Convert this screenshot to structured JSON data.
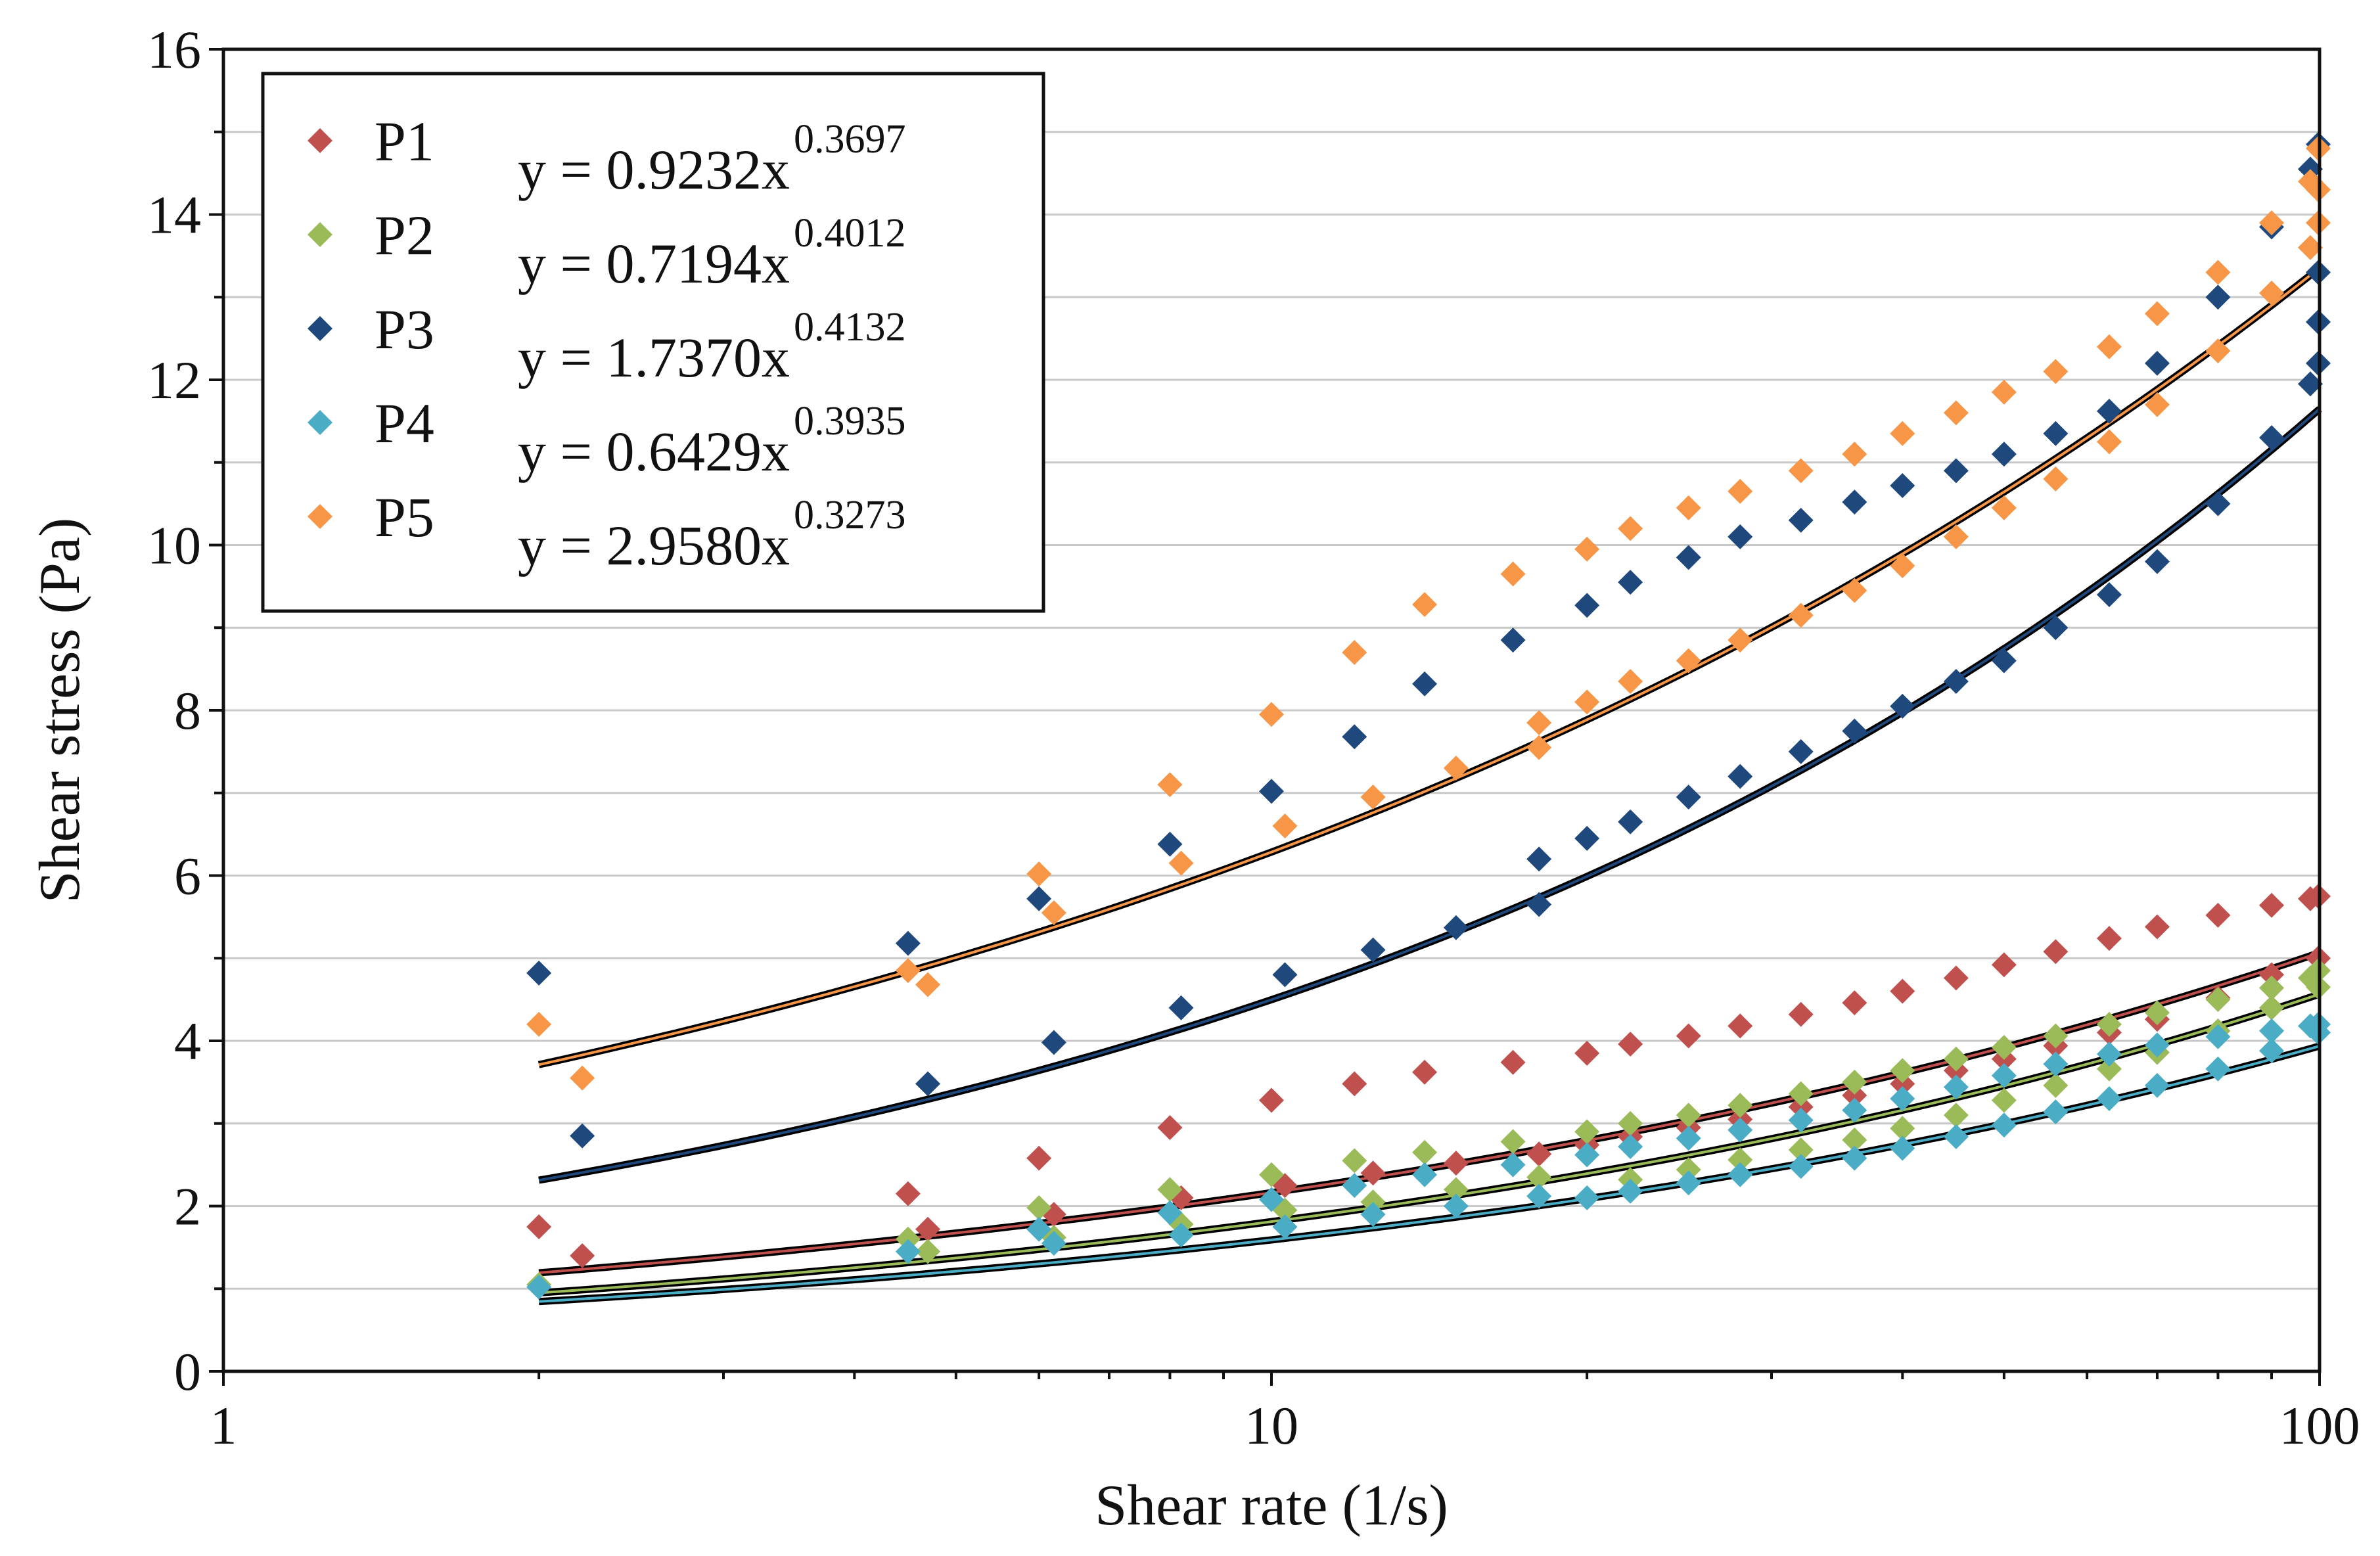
{
  "chart_data": {
    "type": "scatter",
    "xscale": "log",
    "xlim": [
      1,
      100
    ],
    "ylim": [
      0,
      16
    ],
    "xticks": [
      "1",
      "10",
      "100"
    ],
    "yticks": [
      "0",
      "2",
      "4",
      "6",
      "8",
      "10",
      "12",
      "14",
      "16"
    ],
    "xlabel": "Shear rate (1/s)",
    "ylabel": "Shear stress (Pa)",
    "grid": true,
    "legend_position": "top-left",
    "series": [
      {
        "name": "P1",
        "color": "#c0504d",
        "fit": {
          "a": 0.9232,
          "b": 0.3697,
          "equation": "y = 0.9232x",
          "exponent": "0.3697"
        },
        "up": {
          "x": [
            2.0,
            2.2,
            4.5,
            4.7,
            6.0,
            6.2,
            8.0,
            8.2,
            10.0,
            10.3,
            12.0,
            12.5,
            14.0,
            15.0,
            17.0,
            18.0,
            20.0,
            22.0,
            25.0,
            28.0,
            32.0,
            36.0,
            40.0,
            45.0,
            50.0,
            56.0,
            63.0,
            70.0,
            80.0,
            90.0,
            98.0,
            100.0
          ],
          "y": [
            1.75,
            1.4,
            2.15,
            1.72,
            2.58,
            1.9,
            2.95,
            2.1,
            3.28,
            2.25,
            3.48,
            2.4,
            3.62,
            2.52,
            3.74,
            2.63,
            3.85,
            3.96,
            4.06,
            4.18,
            4.32,
            4.46,
            4.6,
            4.76,
            4.92,
            5.08,
            5.24,
            5.38,
            5.52,
            5.64,
            5.72,
            5.75
          ]
        },
        "down": {
          "x": [
            100.0,
            90.0,
            80.0,
            70.0,
            63.0,
            56.0,
            50.0,
            45.0,
            40.0,
            36.0,
            32.0,
            28.0,
            25.0,
            22.0,
            20.0,
            18.0
          ],
          "y": [
            5.0,
            4.8,
            4.52,
            4.26,
            4.1,
            3.94,
            3.78,
            3.64,
            3.48,
            3.34,
            3.2,
            3.05,
            2.95,
            2.84,
            2.74,
            2.63
          ]
        }
      },
      {
        "name": "P2",
        "color": "#9bbb59",
        "fit": {
          "a": 0.7194,
          "b": 0.4012,
          "equation": "y = 0.7194x",
          "exponent": "0.4012"
        },
        "up": {
          "x": [
            2.0,
            4.5,
            4.7,
            6.0,
            6.2,
            8.0,
            8.2,
            10.0,
            10.3,
            12.0,
            12.5,
            14.0,
            15.0,
            17.0,
            18.0,
            20.0,
            22.0,
            25.0,
            28.0,
            32.0,
            36.0,
            40.0,
            45.0,
            50.0,
            56.0,
            63.0,
            70.0,
            80.0,
            90.0,
            98.0,
            100.0
          ],
          "y": [
            1.05,
            1.6,
            1.45,
            1.98,
            1.62,
            2.2,
            1.78,
            2.38,
            1.95,
            2.55,
            2.05,
            2.65,
            2.2,
            2.78,
            2.35,
            2.9,
            3.0,
            3.1,
            3.22,
            3.36,
            3.5,
            3.64,
            3.78,
            3.92,
            4.06,
            4.2,
            4.34,
            4.5,
            4.64,
            4.76,
            4.85
          ]
        },
        "down": {
          "x": [
            100.0,
            90.0,
            80.0,
            70.0,
            63.0,
            56.0,
            50.0,
            45.0,
            40.0,
            36.0,
            32.0,
            28.0,
            25.0,
            22.0
          ],
          "y": [
            4.65,
            4.4,
            4.12,
            3.86,
            3.66,
            3.46,
            3.28,
            3.1,
            2.94,
            2.8,
            2.68,
            2.56,
            2.44,
            2.32
          ]
        }
      },
      {
        "name": "P3",
        "color": "#1f497d",
        "fit": {
          "a": 1.737,
          "b": 0.4132,
          "equation": "y = 1.7370x",
          "exponent": "0.4132"
        },
        "up": {
          "x": [
            2.0,
            2.2,
            4.5,
            4.7,
            6.0,
            6.2,
            8.0,
            8.2,
            10.0,
            10.3,
            12.0,
            12.5,
            14.0,
            15.0,
            17.0,
            18.0,
            20.0,
            22.0,
            25.0,
            28.0,
            32.0,
            36.0,
            40.0,
            45.0,
            50.0,
            56.0,
            63.0,
            70.0,
            80.0,
            90.0,
            98.0,
            100.0
          ],
          "y": [
            4.82,
            2.85,
            5.18,
            3.48,
            5.72,
            3.98,
            6.38,
            4.4,
            7.02,
            4.8,
            7.68,
            5.1,
            8.32,
            5.37,
            8.85,
            5.65,
            9.27,
            9.55,
            9.85,
            10.1,
            10.3,
            10.52,
            10.72,
            10.9,
            11.1,
            11.35,
            11.62,
            12.2,
            13.0,
            13.85,
            14.55,
            14.85
          ]
        },
        "down": {
          "x": [
            100.0,
            100.0,
            100.0,
            98.0,
            90.0,
            80.0,
            70.0,
            63.0,
            56.0,
            50.0,
            45.0,
            40.0,
            36.0,
            32.0,
            28.0,
            25.0,
            22.0,
            20.0,
            18.0
          ],
          "y": [
            13.3,
            12.7,
            12.2,
            11.95,
            11.3,
            10.5,
            9.8,
            9.4,
            9.0,
            8.6,
            8.35,
            8.05,
            7.75,
            7.5,
            7.2,
            6.95,
            6.65,
            6.45,
            6.2
          ]
        }
      },
      {
        "name": "P4",
        "color": "#4bacc6",
        "fit": {
          "a": 0.6429,
          "b": 0.3935,
          "equation": "y = 0.6429x",
          "exponent": "0.3935"
        },
        "up": {
          "x": [
            2.0,
            4.5,
            6.0,
            6.2,
            8.0,
            8.2,
            10.0,
            10.3,
            12.0,
            12.5,
            14.0,
            15.0,
            17.0,
            18.0,
            20.0,
            22.0,
            25.0,
            28.0,
            32.0,
            36.0,
            40.0,
            45.0,
            50.0,
            56.0,
            63.0,
            70.0,
            80.0,
            90.0,
            98.0,
            100.0
          ],
          "y": [
            1.02,
            1.45,
            1.72,
            1.55,
            1.92,
            1.65,
            2.08,
            1.75,
            2.25,
            1.9,
            2.38,
            2.0,
            2.5,
            2.12,
            2.62,
            2.72,
            2.82,
            2.92,
            3.04,
            3.16,
            3.3,
            3.44,
            3.58,
            3.72,
            3.84,
            3.95,
            4.05,
            4.12,
            4.18,
            4.2
          ]
        },
        "down": {
          "x": [
            100.0,
            90.0,
            80.0,
            70.0,
            63.0,
            56.0,
            50.0,
            45.0,
            40.0,
            36.0,
            32.0,
            28.0,
            25.0,
            22.0,
            20.0
          ],
          "y": [
            4.1,
            3.88,
            3.66,
            3.46,
            3.3,
            3.14,
            2.98,
            2.84,
            2.7,
            2.58,
            2.48,
            2.38,
            2.28,
            2.18,
            2.1
          ]
        }
      },
      {
        "name": "P5",
        "color": "#f79646",
        "fit": {
          "a": 2.958,
          "b": 0.3273,
          "equation": "y = 2.9580x",
          "exponent": "0.3273"
        },
        "up": {
          "x": [
            2.0,
            2.2,
            4.5,
            4.7,
            6.0,
            6.2,
            8.0,
            8.2,
            10.0,
            10.3,
            12.0,
            12.5,
            14.0,
            15.0,
            17.0,
            18.0,
            20.0,
            22.0,
            25.0,
            28.0,
            32.0,
            36.0,
            40.0,
            45.0,
            50.0,
            56.0,
            63.0,
            70.0,
            80.0,
            90.0,
            98.0,
            100.0
          ],
          "y": [
            4.2,
            3.55,
            4.85,
            4.68,
            6.02,
            5.55,
            7.1,
            6.15,
            7.95,
            6.6,
            8.7,
            6.95,
            9.28,
            7.3,
            9.65,
            7.55,
            9.95,
            10.2,
            10.45,
            10.65,
            10.9,
            11.1,
            11.35,
            11.6,
            11.85,
            12.1,
            12.4,
            12.8,
            13.3,
            13.9,
            14.4,
            14.8
          ]
        },
        "down": {
          "x": [
            100.0,
            100.0,
            98.0,
            90.0,
            80.0,
            70.0,
            63.0,
            56.0,
            50.0,
            45.0,
            40.0,
            36.0,
            32.0,
            28.0,
            25.0,
            22.0,
            20.0,
            18.0
          ],
          "y": [
            14.3,
            13.9,
            13.6,
            13.05,
            12.35,
            11.7,
            11.25,
            10.8,
            10.45,
            10.1,
            9.75,
            9.45,
            9.15,
            8.85,
            8.6,
            8.35,
            8.1,
            7.85
          ]
        }
      }
    ]
  }
}
